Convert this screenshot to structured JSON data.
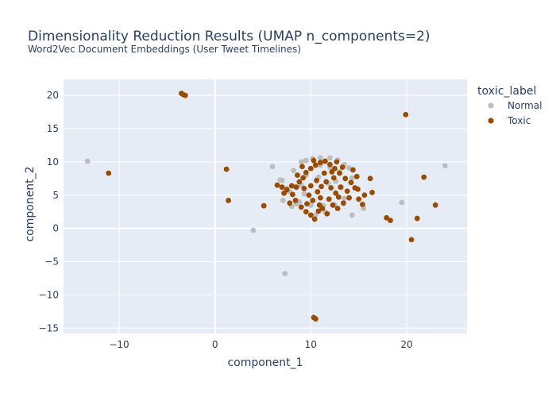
{
  "chart_data": {
    "type": "scatter",
    "title": "Dimensionality Reduction Results (UMAP n_components=2)",
    "subtitle": "Word2Vec Document Embeddings (User Tweet Timelines)",
    "xlabel": "component_1",
    "ylabel": "component_2",
    "xlim": [
      -15.8,
      26.3
    ],
    "ylim": [
      -15.8,
      22.4
    ],
    "xticks": [
      -10,
      0,
      10,
      20
    ],
    "yticks": [
      -15,
      -10,
      -5,
      0,
      5,
      10,
      15,
      20
    ],
    "grid": true,
    "legend": {
      "title": "toxic_label",
      "placement": "top-right"
    },
    "series": [
      {
        "name": "Normal",
        "color": "#bdbdbd",
        "points": [
          [
            -13.3,
            10.1
          ],
          [
            4.0,
            -0.3
          ],
          [
            7.3,
            -6.8
          ],
          [
            6.0,
            9.3
          ],
          [
            6.8,
            7.3
          ],
          [
            7.0,
            7.2
          ],
          [
            7.5,
            6.0
          ],
          [
            7.8,
            5.5
          ],
          [
            8.2,
            8.7
          ],
          [
            8.5,
            3.7
          ],
          [
            9.0,
            10.0
          ],
          [
            9.5,
            10.2
          ],
          [
            10.2,
            10.5
          ],
          [
            11.0,
            10.6
          ],
          [
            12.0,
            10.6
          ],
          [
            12.8,
            10.3
          ],
          [
            13.5,
            9.6
          ],
          [
            14.0,
            9.1
          ],
          [
            14.3,
            7.6
          ],
          [
            13.5,
            4.5
          ],
          [
            14.3,
            2.0
          ],
          [
            15.5,
            3.0
          ],
          [
            10.5,
            2.0
          ],
          [
            11.5,
            2.5
          ],
          [
            8.8,
            4.0
          ],
          [
            9.0,
            6.5
          ],
          [
            9.5,
            8.0
          ],
          [
            10.0,
            9.0
          ],
          [
            11.0,
            9.5
          ],
          [
            12.0,
            9.2
          ],
          [
            13.0,
            8.5
          ],
          [
            12.5,
            3.5
          ],
          [
            10.0,
            3.5
          ],
          [
            9.3,
            5.2
          ],
          [
            8.3,
            6.3
          ],
          [
            10.8,
            7.7
          ],
          [
            11.8,
            6.8
          ],
          [
            12.6,
            7.1
          ],
          [
            13.2,
            6.2
          ],
          [
            11.3,
            3.4
          ],
          [
            19.5,
            3.9
          ],
          [
            24.0,
            9.4
          ],
          [
            7.1,
            4.2
          ],
          [
            8.0,
            3.3
          ]
        ]
      },
      {
        "name": "Toxic",
        "color": "#994c00",
        "points": [
          [
            -3.5,
            20.3
          ],
          [
            -3.3,
            20.1
          ],
          [
            -3.1,
            20.0
          ],
          [
            -11.1,
            8.3
          ],
          [
            1.2,
            8.9
          ],
          [
            1.4,
            4.2
          ],
          [
            5.1,
            3.4
          ],
          [
            10.3,
            -13.4
          ],
          [
            10.5,
            -13.6
          ],
          [
            19.9,
            17.1
          ],
          [
            20.5,
            -1.7
          ],
          [
            21.8,
            7.7
          ],
          [
            23.0,
            3.5
          ],
          [
            21.1,
            1.5
          ],
          [
            17.9,
            1.6
          ],
          [
            18.3,
            1.2
          ],
          [
            16.2,
            7.5
          ],
          [
            16.4,
            5.4
          ],
          [
            15.6,
            5.0
          ],
          [
            15.0,
            4.4
          ],
          [
            15.4,
            3.6
          ],
          [
            14.8,
            7.8
          ],
          [
            14.4,
            8.8
          ],
          [
            6.5,
            6.5
          ],
          [
            7.0,
            6.2
          ],
          [
            7.5,
            5.8
          ],
          [
            8.0,
            6.4
          ],
          [
            8.5,
            6.2
          ],
          [
            8.1,
            5.1
          ],
          [
            8.4,
            4.2
          ],
          [
            9.0,
            3.2
          ],
          [
            9.5,
            2.5
          ],
          [
            10.0,
            2.0
          ],
          [
            10.4,
            1.4
          ],
          [
            10.8,
            2.6
          ],
          [
            11.2,
            3.0
          ],
          [
            11.7,
            2.2
          ],
          [
            12.3,
            3.5
          ],
          [
            12.8,
            3.0
          ],
          [
            13.4,
            3.8
          ],
          [
            14.0,
            4.6
          ],
          [
            13.8,
            5.6
          ],
          [
            14.6,
            6.1
          ],
          [
            14.2,
            6.9
          ],
          [
            13.6,
            7.5
          ],
          [
            13.0,
            8.3
          ],
          [
            12.5,
            9.0
          ],
          [
            12.0,
            9.6
          ],
          [
            11.5,
            10.1
          ],
          [
            11.0,
            9.9
          ],
          [
            10.5,
            9.5
          ],
          [
            10.0,
            9.0
          ],
          [
            9.5,
            8.4
          ],
          [
            9.2,
            7.6
          ],
          [
            8.8,
            7.0
          ],
          [
            9.3,
            6.0
          ],
          [
            9.8,
            5.0
          ],
          [
            10.2,
            4.2
          ],
          [
            10.7,
            5.5
          ],
          [
            11.1,
            6.3
          ],
          [
            11.6,
            7.0
          ],
          [
            12.1,
            6.1
          ],
          [
            12.6,
            5.3
          ],
          [
            13.1,
            6.2
          ],
          [
            12.4,
            7.6
          ],
          [
            11.4,
            8.3
          ],
          [
            10.6,
            7.2
          ],
          [
            10.0,
            6.4
          ],
          [
            11.0,
            4.6
          ],
          [
            11.9,
            4.4
          ],
          [
            12.9,
            4.7
          ],
          [
            9.6,
            3.7
          ],
          [
            10.9,
            3.5
          ],
          [
            12.2,
            8.5
          ],
          [
            13.3,
            9.2
          ],
          [
            8.6,
            8.0
          ],
          [
            7.8,
            3.8
          ],
          [
            7.2,
            5.3
          ],
          [
            9.1,
            9.3
          ],
          [
            10.3,
            10.2
          ],
          [
            12.7,
            10.0
          ],
          [
            14.9,
            5.9
          ]
        ]
      }
    ]
  }
}
